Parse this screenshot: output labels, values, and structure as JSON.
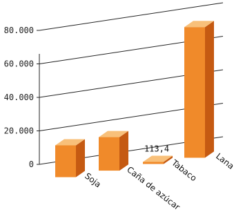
{
  "chart_data": {
    "type": "bar",
    "title": "",
    "xlabel": "",
    "ylabel": "",
    "categories": [
      "Soja",
      "Caña de azúcar",
      "Tabaco",
      "Lana"
    ],
    "values": [
      19000,
      20000,
      113.4,
      78000
    ],
    "value_labels": [
      "",
      "",
      "113,4",
      ""
    ],
    "y_ticks": [
      "0",
      "20.000",
      "40.000",
      "60.000",
      "80.000"
    ],
    "ylim": [
      0,
      90000
    ],
    "grid": true,
    "legend": "none",
    "bar_style": "3d"
  },
  "colors": {
    "bar_front": "#f08a2a",
    "bar_side": "#c55a12",
    "bar_top": "#f8c07a",
    "grid": "#222222"
  }
}
